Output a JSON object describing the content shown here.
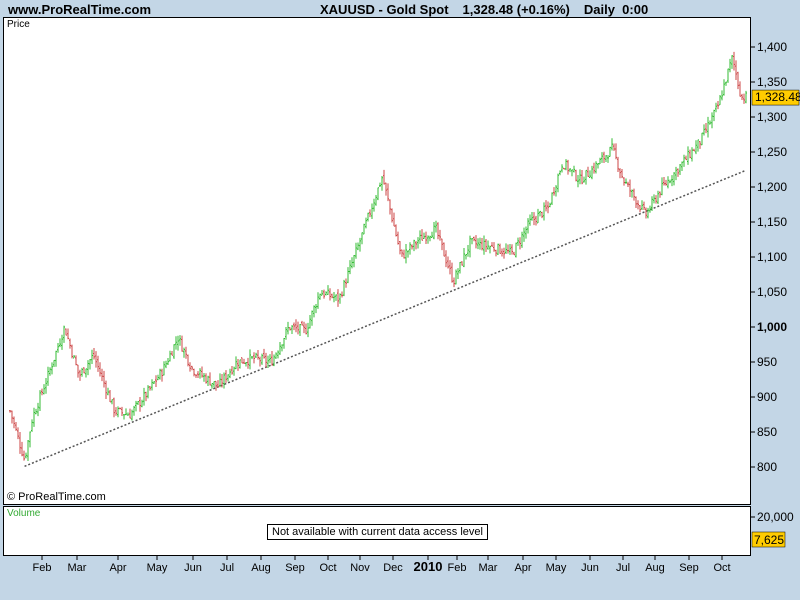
{
  "header": {
    "site": "www.ProRealTime.com",
    "symbol": "XAUUSD - Gold Spot",
    "quote": "1,328.48 (+0.16%)",
    "timeframe": "Daily  0:00"
  },
  "price_pane": {
    "label": "Price",
    "copyright": "© ProRealTime.com",
    "last_price_tag": "1,328.48",
    "y_ticks": [
      {
        "value": 800,
        "label": "800"
      },
      {
        "value": 850,
        "label": "850"
      },
      {
        "value": 900,
        "label": "900"
      },
      {
        "value": 950,
        "label": "950"
      },
      {
        "value": 1000,
        "label": "1,000"
      },
      {
        "value": 1050,
        "label": "1,050"
      },
      {
        "value": 1100,
        "label": "1,100"
      },
      {
        "value": 1150,
        "label": "1,150"
      },
      {
        "value": 1200,
        "label": "1,200"
      },
      {
        "value": 1250,
        "label": "1,250"
      },
      {
        "value": 1300,
        "label": "1,300"
      },
      {
        "value": 1350,
        "label": "1,350"
      },
      {
        "value": 1400,
        "label": "1,400"
      }
    ]
  },
  "volume_pane": {
    "label": "Volume",
    "notice": "Not available with current data access level",
    "y_tick_label": "20,000",
    "last_tag": "7,625"
  },
  "colors": {
    "up": "#33bb33",
    "down": "#cc4444",
    "tag": "#ffcc00",
    "background": "#c3d6e6",
    "trendline": "#555555"
  },
  "chart_data": {
    "type": "ohlc",
    "x_labels": [
      "Feb",
      "Mar",
      "Apr",
      "May",
      "Jun",
      "Jul",
      "Aug",
      "Sep",
      "Oct",
      "Nov",
      "Dec",
      "2010",
      "Feb",
      "Mar",
      "Apr",
      "May",
      "Jun",
      "Jul",
      "Aug",
      "Sep",
      "Oct"
    ],
    "ylim": [
      780,
      1420
    ],
    "last_close": 1328.48,
    "change_pct": 0.16,
    "series_path": [
      {
        "date": "2009-01-02",
        "close": 880
      },
      {
        "date": "2009-01-15",
        "close": 810
      },
      {
        "date": "2009-01-22",
        "close": 870
      },
      {
        "date": "2009-02-05",
        "close": 930
      },
      {
        "date": "2009-02-20",
        "close": 1000
      },
      {
        "date": "2009-03-05",
        "close": 930
      },
      {
        "date": "2009-03-18",
        "close": 960
      },
      {
        "date": "2009-04-06",
        "close": 880
      },
      {
        "date": "2009-04-20",
        "close": 875
      },
      {
        "date": "2009-05-05",
        "close": 905
      },
      {
        "date": "2009-05-20",
        "close": 940
      },
      {
        "date": "2009-06-02",
        "close": 985
      },
      {
        "date": "2009-06-15",
        "close": 940
      },
      {
        "date": "2009-07-08",
        "close": 915
      },
      {
        "date": "2009-07-25",
        "close": 950
      },
      {
        "date": "2009-08-10",
        "close": 955
      },
      {
        "date": "2009-08-25",
        "close": 950
      },
      {
        "date": "2009-09-10",
        "close": 1000
      },
      {
        "date": "2009-09-25",
        "close": 995
      },
      {
        "date": "2009-10-08",
        "close": 1050
      },
      {
        "date": "2009-10-25",
        "close": 1040
      },
      {
        "date": "2009-11-10",
        "close": 1110
      },
      {
        "date": "2009-12-03",
        "close": 1215
      },
      {
        "date": "2009-12-20",
        "close": 1100
      },
      {
        "date": "2010-01-05",
        "close": 1125
      },
      {
        "date": "2010-01-20",
        "close": 1140
      },
      {
        "date": "2010-02-05",
        "close": 1065
      },
      {
        "date": "2010-02-20",
        "close": 1120
      },
      {
        "date": "2010-03-10",
        "close": 1115
      },
      {
        "date": "2010-03-30",
        "close": 1105
      },
      {
        "date": "2010-04-15",
        "close": 1150
      },
      {
        "date": "2010-05-01",
        "close": 1170
      },
      {
        "date": "2010-05-14",
        "close": 1235
      },
      {
        "date": "2010-05-30",
        "close": 1210
      },
      {
        "date": "2010-06-10",
        "close": 1225
      },
      {
        "date": "2010-06-28",
        "close": 1255
      },
      {
        "date": "2010-07-08",
        "close": 1210
      },
      {
        "date": "2010-07-28",
        "close": 1160
      },
      {
        "date": "2010-08-10",
        "close": 1195
      },
      {
        "date": "2010-08-28",
        "close": 1230
      },
      {
        "date": "2010-09-15",
        "close": 1265
      },
      {
        "date": "2010-10-01",
        "close": 1315
      },
      {
        "date": "2010-10-14",
        "close": 1385
      },
      {
        "date": "2010-10-22",
        "close": 1328.48
      }
    ],
    "trendline": {
      "style": "dotted",
      "from": {
        "date": "2009-01-15",
        "value": 801
      },
      "to": {
        "date": "2010-10-25",
        "value": 1223
      }
    }
  }
}
